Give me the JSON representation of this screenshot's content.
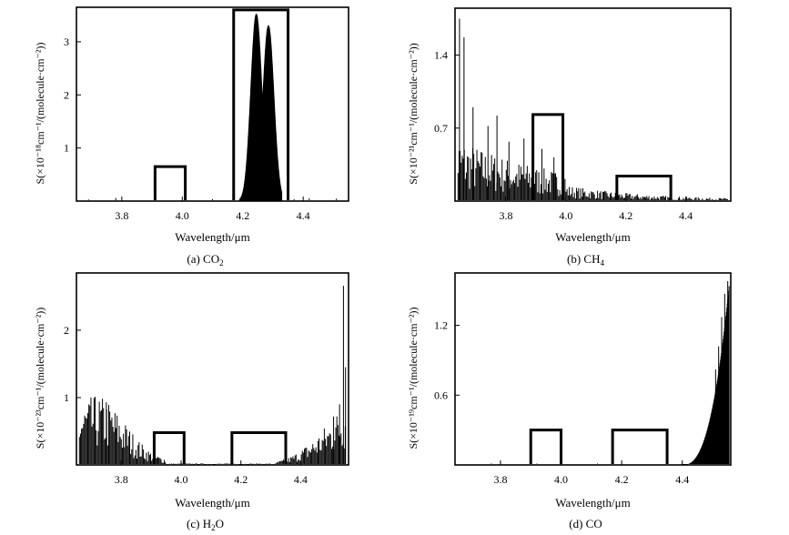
{
  "chart_data": [
    {
      "type": "line",
      "caption": "(a) CO",
      "caption_sub": "2",
      "xlabel": "Wavelength/μm",
      "ylabel": "S(×10⁻¹⁸cm⁻¹/(molecule·cm⁻²))",
      "xlim": [
        3.65,
        4.55
      ],
      "ylim": [
        0,
        3.65
      ],
      "xticks": [
        "3.8",
        "4.0",
        "4.2",
        "4.4"
      ],
      "yticks": [
        "1",
        "2",
        "3"
      ],
      "ytick_values": [
        1,
        2,
        3
      ],
      "peaks": [
        {
          "center": 4.245,
          "height": 3.52,
          "width": 0.018
        },
        {
          "center": 4.285,
          "height": 3.3,
          "width": 0.018
        }
      ],
      "boxes": [
        {
          "x": [
            3.91,
            4.01
          ],
          "y": [
            0,
            0.65
          ]
        },
        {
          "x": [
            4.17,
            4.35
          ],
          "y": [
            0,
            3.6
          ]
        }
      ]
    },
    {
      "type": "line",
      "caption": "(b) CH",
      "caption_sub": "4",
      "xlabel": "Wavelength/μm",
      "ylabel": "S(×10⁻²¹cm⁻¹/(molecule·cm⁻²))",
      "xlim": [
        3.63,
        4.55
      ],
      "ylim": [
        0,
        1.85
      ],
      "xticks": [
        "3.8",
        "4.0",
        "4.2",
        "4.4"
      ],
      "yticks": [
        "0.7",
        "1.4"
      ],
      "ytick_values": [
        0.7,
        1.4
      ],
      "lines": [
        [
          3.645,
          1.75
        ],
        [
          3.66,
          1.57
        ],
        [
          3.69,
          0.9
        ],
        [
          3.74,
          0.72
        ],
        [
          3.77,
          0.82
        ],
        [
          3.81,
          0.57
        ],
        [
          3.86,
          0.6
        ],
        [
          3.92,
          0.5
        ],
        [
          3.96,
          0.42
        ]
      ],
      "boxes": [
        {
          "x": [
            3.89,
            3.99
          ],
          "y": [
            0,
            0.83
          ]
        },
        {
          "x": [
            4.17,
            4.35
          ],
          "y": [
            0,
            0.24
          ]
        }
      ]
    },
    {
      "type": "line",
      "caption": "(c) H",
      "caption_sub": "2",
      "caption_tail": "O",
      "xlabel": "Wavelength/μm",
      "ylabel": "S(×10⁻²³cm⁻¹/(molecule·cm⁻²))",
      "xlim": [
        3.65,
        4.56
      ],
      "ylim": [
        0,
        2.85
      ],
      "xticks": [
        "3.8",
        "4.0",
        "4.2",
        "4.4"
      ],
      "yticks": [
        "1",
        "2"
      ],
      "ytick_values": [
        1,
        2
      ],
      "lines": [
        [
          4.543,
          2.66
        ],
        [
          4.55,
          1.45
        ],
        [
          4.53,
          0.9
        ],
        [
          4.51,
          0.72
        ],
        [
          3.75,
          0.93
        ]
      ],
      "boxes": [
        {
          "x": [
            3.91,
            4.01
          ],
          "y": [
            0,
            0.48
          ]
        },
        {
          "x": [
            4.17,
            4.35
          ],
          "y": [
            0,
            0.48
          ]
        }
      ]
    },
    {
      "type": "line",
      "caption": "(d) CO",
      "xlabel": "Wavelength/μm",
      "ylabel": "S(×10⁻¹⁹cm⁻¹/(molecule·cm⁻²))",
      "xlim": [
        3.65,
        4.56
      ],
      "ylim": [
        0,
        1.65
      ],
      "xticks": [
        "3.8",
        "4.0",
        "4.2",
        "4.4"
      ],
      "yticks": [
        "0.6",
        "1.2"
      ],
      "ytick_values": [
        0.6,
        1.2
      ],
      "lines": [
        [
          4.55,
          1.58
        ],
        [
          4.54,
          1.47
        ],
        [
          4.53,
          1.27
        ],
        [
          4.52,
          1.02
        ],
        [
          4.51,
          0.82
        ]
      ],
      "boxes": [
        {
          "x": [
            3.9,
            4.0
          ],
          "y": [
            0,
            0.3
          ]
        },
        {
          "x": [
            4.17,
            4.35
          ],
          "y": [
            0,
            0.3
          ]
        }
      ]
    }
  ]
}
